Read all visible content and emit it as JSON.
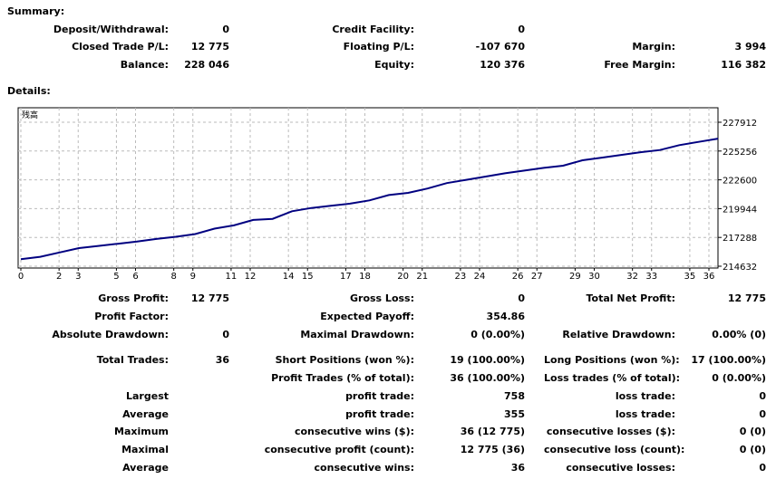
{
  "summary": {
    "heading": "Summary:",
    "deposit_label": "Deposit/Withdrawal:",
    "deposit_value": "0",
    "credit_label": "Credit Facility:",
    "credit_value": "0",
    "closed_label": "Closed Trade P/L:",
    "closed_value": "12 775",
    "floating_label": "Floating P/L:",
    "floating_value": "-107 670",
    "margin_label": "Margin:",
    "margin_value": "3 994",
    "balance_label": "Balance:",
    "balance_value": "228 046",
    "equity_label": "Equity:",
    "equity_value": "120 376",
    "free_margin_label": "Free Margin:",
    "free_margin_value": "116 382"
  },
  "details": {
    "heading": "Details:"
  },
  "chart_data": {
    "type": "line",
    "title": "",
    "corner_label": "残高",
    "x_ticks": [
      "0",
      "2",
      "3",
      "5",
      "6",
      "8",
      "9",
      "11",
      "12",
      "14",
      "15",
      "17",
      "18",
      "20",
      "21",
      "23",
      "24",
      "26",
      "27",
      "29",
      "30",
      "32",
      "33",
      "35",
      "36"
    ],
    "y_ticks": [
      "227912",
      "225256",
      "222600",
      "219944",
      "217288",
      "214632"
    ],
    "ylim": [
      214632,
      227912
    ],
    "xlim": [
      0,
      36
    ],
    "grid": true,
    "line_color": "#000080",
    "series": [
      {
        "x": [
          0,
          1,
          2,
          3,
          4,
          5,
          6,
          7,
          8,
          9,
          10,
          11,
          12,
          13,
          14,
          15,
          16,
          17,
          18,
          19,
          20,
          21,
          22,
          23,
          24,
          25,
          26,
          27,
          28,
          29,
          30,
          31,
          32,
          33,
          34,
          35,
          36
        ],
        "y": [
          215271,
          215500,
          215900,
          216300,
          216500,
          216700,
          216900,
          217150,
          217350,
          217600,
          218100,
          218400,
          218900,
          219000,
          219700,
          220000,
          220200,
          220400,
          220700,
          221200,
          221400,
          221800,
          222300,
          222600,
          222900,
          223200,
          223450,
          223700,
          223900,
          224400,
          224650,
          224900,
          225150,
          225350,
          225800,
          226100,
          226400
        ]
      }
    ]
  },
  "stats": {
    "gross_profit_label": "Gross Profit:",
    "gross_profit_value": "12 775",
    "gross_loss_label": "Gross Loss:",
    "gross_loss_value": "0",
    "net_profit_label": "Total Net Profit:",
    "net_profit_value": "12 775",
    "profit_factor_label": "Profit Factor:",
    "profit_factor_value": "",
    "expected_payoff_label": "Expected Payoff:",
    "expected_payoff_value": "354.86",
    "abs_drawdown_label": "Absolute Drawdown:",
    "abs_drawdown_value": "0",
    "max_drawdown_label": "Maximal Drawdown:",
    "max_drawdown_value": "0 (0.00%)",
    "rel_drawdown_label": "Relative Drawdown:",
    "rel_drawdown_value": "0.00% (0)",
    "total_trades_label": "Total Trades:",
    "total_trades_value": "36",
    "short_label": "Short Positions (won %):",
    "short_value": "19 (100.00%)",
    "long_label": "Long Positions (won %):",
    "long_value": "17 (100.00%)",
    "profit_trades_label": "Profit Trades (% of total):",
    "profit_trades_value": "36 (100.00%)",
    "loss_trades_label": "Loss trades (% of total):",
    "loss_trades_value": "0 (0.00%)",
    "largest_label": "Largest",
    "largest_profit_label": "profit trade:",
    "largest_profit_value": "758",
    "largest_loss_label": "loss trade:",
    "largest_loss_value": "0",
    "average_label": "Average",
    "average_profit_label": "profit trade:",
    "average_profit_value": "355",
    "average_loss_label": "loss trade:",
    "average_loss_value": "0",
    "maximum_label": "Maximum",
    "max_wins_label": "consecutive wins ($):",
    "max_wins_value": "36 (12 775)",
    "max_losses_label": "consecutive losses ($):",
    "max_losses_value": "0 (0)",
    "maximal_label": "Maximal",
    "maximal_profit_label": "consecutive profit (count):",
    "maximal_profit_value": "12 775 (36)",
    "maximal_loss_label": "consecutive loss (count):",
    "maximal_loss_value": "0 (0)",
    "average2_label": "Average",
    "avg_wins_label": "consecutive wins:",
    "avg_wins_value": "36",
    "avg_losses_label": "consecutive losses:",
    "avg_losses_value": "0"
  }
}
